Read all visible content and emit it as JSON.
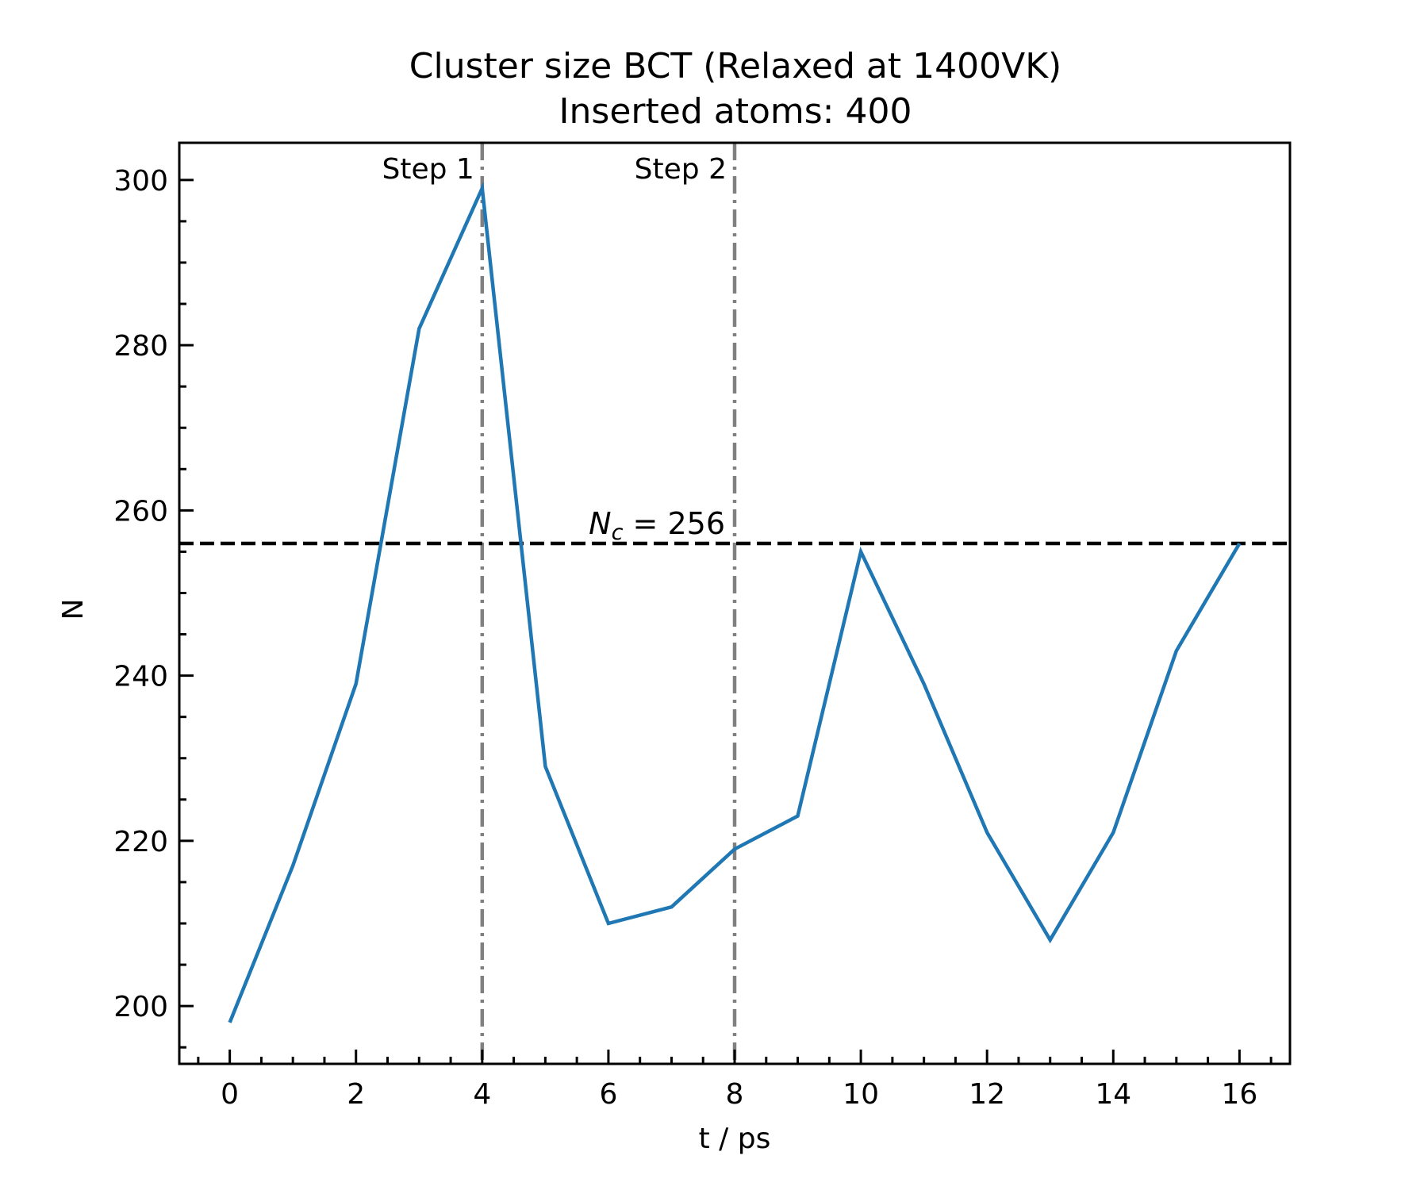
{
  "chart_data": {
    "type": "line",
    "title": "Cluster size BCT (Relaxed at 1400VK)",
    "subtitle": "Inserted atoms: 400",
    "xlabel": "t / ps",
    "ylabel": "N",
    "xlim": [
      -0.8,
      16.8
    ],
    "ylim": [
      193,
      304.5
    ],
    "x_ticks": [
      0,
      2,
      4,
      6,
      8,
      10,
      12,
      14,
      16
    ],
    "y_ticks": [
      200,
      220,
      240,
      260,
      280,
      300
    ],
    "x_minor_step": 0.5,
    "y_minor_step": 5,
    "grid": false,
    "series": [
      {
        "color": "#1f77b4",
        "x": [
          0,
          1,
          2,
          3,
          4,
          5,
          6,
          7,
          8,
          9,
          10,
          11,
          12,
          13,
          14,
          15,
          16
        ],
        "y": [
          198,
          217,
          239,
          282,
          299,
          229,
          210,
          212,
          219,
          223,
          255,
          239,
          221,
          208,
          221,
          243,
          256
        ]
      }
    ],
    "threshold": {
      "value": 256,
      "label_symbol": "N",
      "label_subscript": "c",
      "label_rest": " = 256",
      "color": "#000000"
    },
    "step_markers": [
      {
        "x": 4,
        "label": "Step 1",
        "color": "#808080"
      },
      {
        "x": 8,
        "label": "Step 2",
        "color": "#808080"
      }
    ]
  }
}
